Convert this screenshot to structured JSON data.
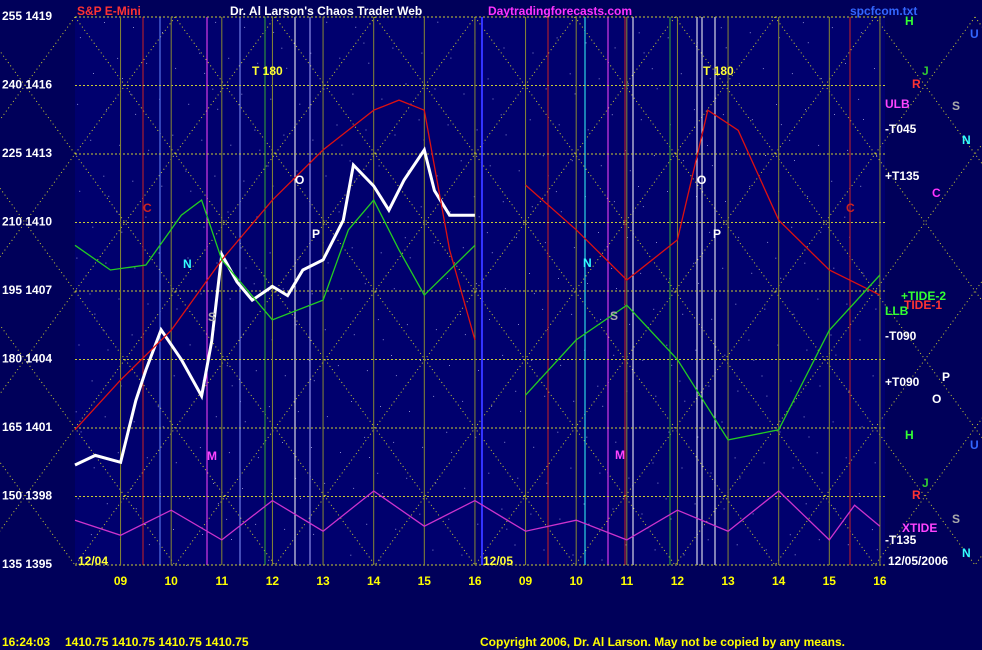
{
  "chart_data": {
    "type": "line",
    "title": "Dr. Al Larson's Chaos Trader Web",
    "instrument": "S&P E-Mini",
    "website": "Daytradingforecasts.com",
    "file": "spcfcom.txt",
    "xlim": [
      8.1,
      24.1
    ],
    "ylim": [
      135,
      255
    ],
    "yticks": [
      {
        "value": 135,
        "label": "135 1395"
      },
      {
        "value": 150,
        "label": "150 1398"
      },
      {
        "value": 165,
        "label": "165 1401"
      },
      {
        "value": 180,
        "label": "180 1404"
      },
      {
        "value": 195,
        "label": "195 1407"
      },
      {
        "value": 210,
        "label": "210 1410"
      },
      {
        "value": 225,
        "label": "225 1413"
      },
      {
        "value": 240,
        "label": "240 1416"
      },
      {
        "value": 255,
        "label": "255 1419"
      }
    ],
    "xticks": [
      {
        "value": 9,
        "label": "09"
      },
      10,
      11,
      12,
      13,
      14,
      15,
      16,
      {
        "value": 17,
        "label": "09"
      },
      {
        "value": 18,
        "label": "10"
      },
      {
        "value": 19,
        "label": "11"
      },
      {
        "value": 20,
        "label": "12"
      },
      {
        "value": 21,
        "label": "13"
      },
      {
        "value": 22,
        "label": "14"
      },
      {
        "value": 23,
        "label": "15"
      },
      {
        "value": 24,
        "label": "16"
      }
    ],
    "grid": true,
    "series": [
      {
        "color": "#ffffff",
        "x": [
          8.1,
          8.5,
          9.0,
          9.3,
          9.5,
          9.8,
          10.2,
          10.6,
          10.8,
          11.0,
          11.3,
          11.6,
          12.0,
          12.3,
          12.6,
          13.0,
          13.4,
          13.6,
          14.0,
          14.3,
          14.6,
          15.0,
          15.2,
          15.5,
          16.0
        ],
        "values": [
          156.9,
          159,
          157.5,
          171,
          177.7,
          186.5,
          180,
          172,
          184,
          203,
          197,
          193,
          196,
          194,
          199.6,
          201.8,
          210.5,
          222.6,
          218,
          212.7,
          219.3,
          225.9,
          217,
          211.6,
          211.6
        ]
      },
      {
        "color": "#dd1111",
        "x": [
          8.1,
          9.0,
          10.0,
          11.0,
          12.0,
          13.0,
          14.0,
          14.5,
          15.0,
          15.5,
          16.0,
          16.1,
          17,
          18,
          19,
          20,
          20.6,
          21.2,
          22,
          23,
          24
        ],
        "values": [
          164.6,
          175.5,
          186.4,
          201.8,
          214.9,
          225.9,
          234.6,
          236.8,
          234.6,
          204,
          184.3,
          null,
          218.2,
          208.4,
          197.4,
          206.2,
          234.6,
          230.2,
          210.5,
          199.6,
          194.1
        ]
      },
      {
        "color": "#22cc22",
        "x": [
          8.1,
          8.8,
          9.5,
          10.2,
          10.6,
          11.0,
          12.0,
          13.0,
          13.5,
          14.0,
          14.5,
          15.0,
          16.0,
          16.1,
          17,
          18,
          19,
          20,
          21,
          22,
          23,
          24
        ],
        "values": [
          205,
          199.6,
          200.7,
          211.6,
          214.9,
          201.8,
          188.7,
          193,
          208.4,
          214.9,
          204,
          194.1,
          205,
          null,
          172.2,
          184.3,
          191.9,
          180,
          162.4,
          164.6,
          186.4,
          198.5
        ]
      },
      {
        "color": "#cc33cc",
        "x": [
          8.1,
          9,
          10,
          11,
          12,
          13,
          14,
          15,
          16,
          17,
          18,
          19,
          20,
          21,
          22,
          23,
          23.5,
          24
        ],
        "values": [
          144.8,
          141.5,
          147,
          140.5,
          149.1,
          142.4,
          151.2,
          143.5,
          149.1,
          142.4,
          144.8,
          140.5,
          147,
          142.4,
          151.2,
          140.5,
          148.1,
          143.5
        ]
      }
    ],
    "annotations": [
      "T 180",
      "T 180",
      "O",
      "O",
      "P",
      "P",
      "N",
      "N",
      "S",
      "S",
      "M",
      "M",
      "C",
      "C",
      "+TIDE-2",
      "TIDE-1",
      "XTIDE",
      "LLB",
      "ULB",
      "-T045",
      "+T135",
      "-T090",
      "+T090",
      "-T135",
      "12/04",
      "12/05",
      "12/05/2006",
      "H",
      "U",
      "J",
      "R",
      "S",
      "N",
      "C",
      "P",
      "O",
      "H",
      "U",
      "J",
      "R",
      "S",
      "N"
    ],
    "footer": {
      "time": "16:24:03",
      "prices": "1410.75 1410.75 1410.75 1410.75",
      "copyright": "Copyright 2006, Dr. Al Larson. May not be copied by any means."
    }
  }
}
